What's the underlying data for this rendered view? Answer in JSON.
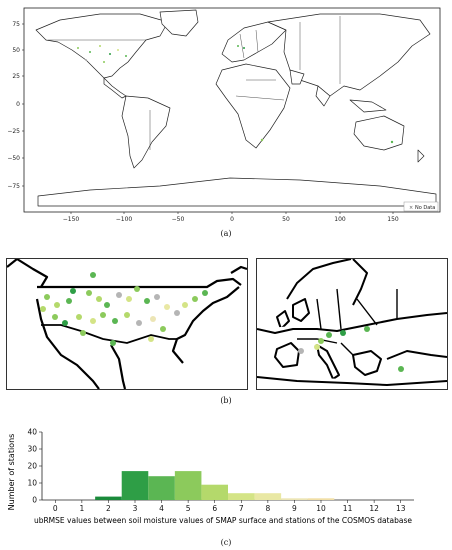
{
  "panel_a": {
    "caption": "(a)",
    "legend_label": "No Data",
    "x_ticks": [
      "−150",
      "−100",
      "−50",
      "0",
      "50",
      "100",
      "150"
    ],
    "y_ticks": [
      "75",
      "50",
      "25",
      "0",
      "−25",
      "−50",
      "−75"
    ]
  },
  "panel_b": {
    "caption": "(b)"
  },
  "panel_c": {
    "caption": "(c)"
  },
  "colors": {
    "no_data": "#b5b5b5",
    "bins": [
      "#1a8a3a",
      "#2e9e46",
      "#5bb653",
      "#8cca5c",
      "#b4d96b",
      "#d4e486",
      "#e9e8a4",
      "#ece5b5",
      "#f1dfa6",
      "#e7c98c"
    ]
  },
  "chart_data": {
    "type": "bar",
    "xlabel": "ubRMSE values between soil moisture values of SMAP surface and stations of the COSMOS database",
    "ylabel": "Number of stations",
    "ylim": [
      0,
      40
    ],
    "xlim": [
      -0.5,
      13.5
    ],
    "x_ticks": [
      "0",
      "1",
      "2",
      "3",
      "4",
      "5",
      "6",
      "7",
      "8",
      "9",
      "10",
      "11",
      "12",
      "13"
    ],
    "y_ticks": [
      "0",
      "10",
      "20",
      "30",
      "40"
    ],
    "bins": [
      {
        "x0": 1.5,
        "x1": 2.5,
        "value": 2
      },
      {
        "x0": 2.5,
        "x1": 3.5,
        "value": 17
      },
      {
        "x0": 3.5,
        "x1": 4.5,
        "value": 14
      },
      {
        "x0": 4.5,
        "x1": 5.5,
        "value": 17
      },
      {
        "x0": 5.5,
        "x1": 6.5,
        "value": 9
      },
      {
        "x0": 6.5,
        "x1": 7.5,
        "value": 4
      },
      {
        "x0": 7.5,
        "x1": 8.5,
        "value": 4
      },
      {
        "x0": 8.5,
        "x1": 9.5,
        "value": 1
      },
      {
        "x0": 9.5,
        "x1": 10.5,
        "value": 1
      }
    ]
  }
}
